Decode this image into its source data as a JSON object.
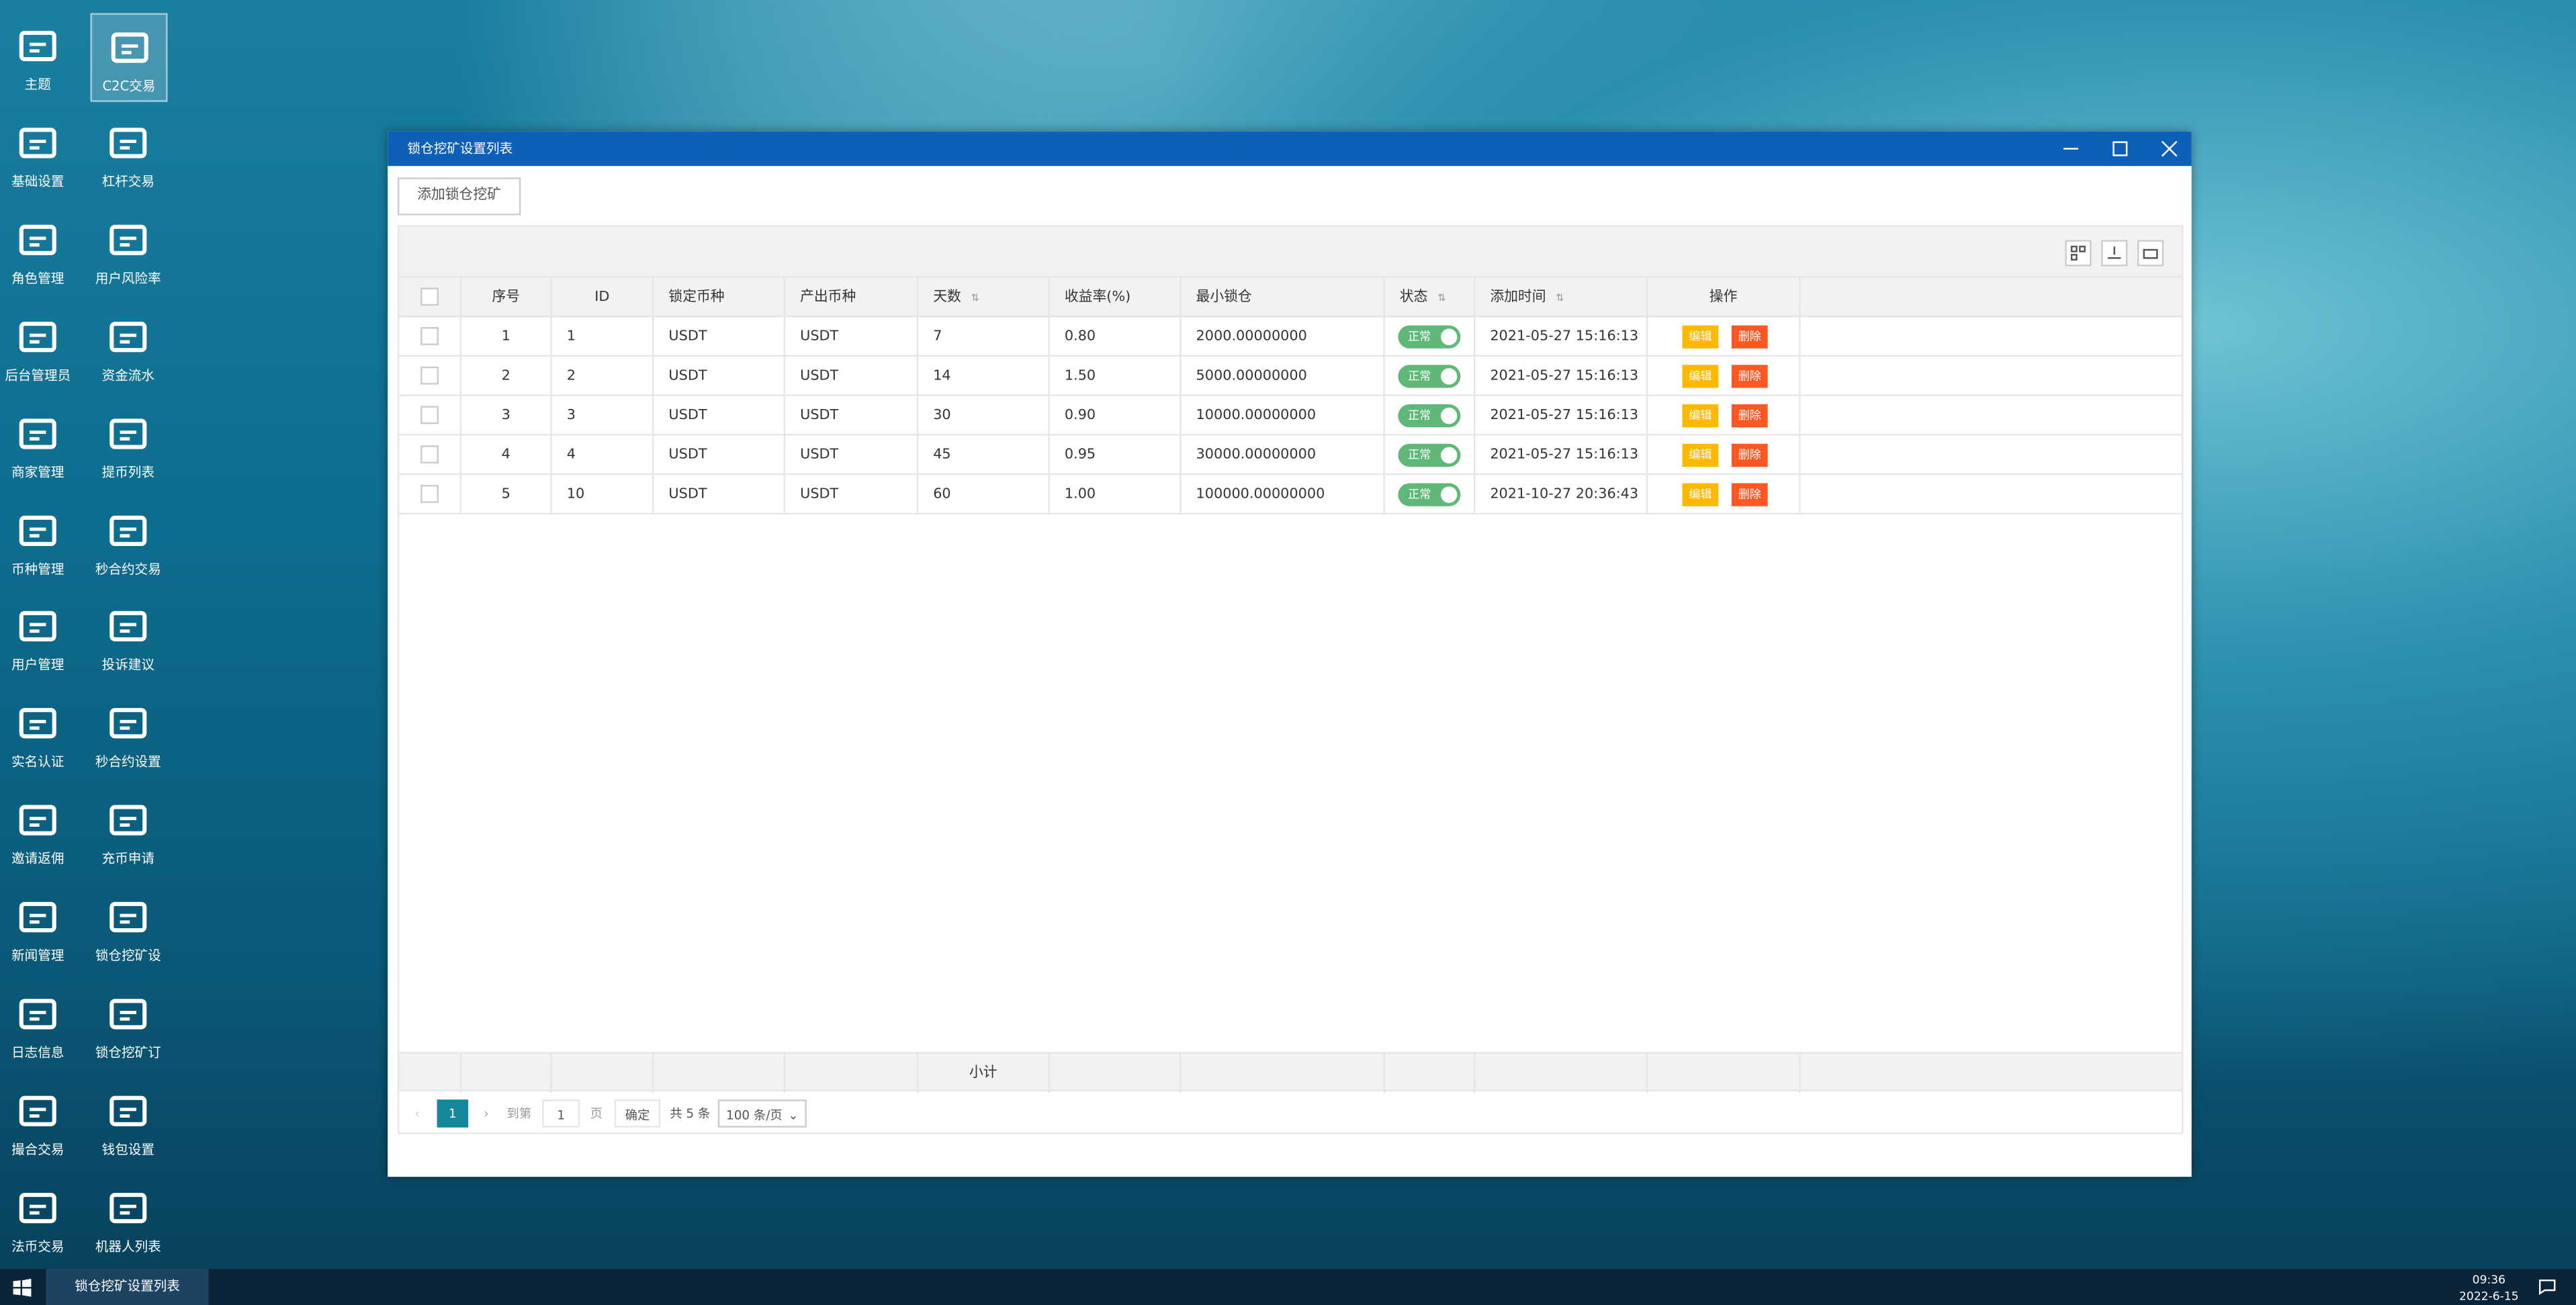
{
  "desktop_icons": [
    "主题",
    "C2C交易",
    "基础设置",
    "杠杆交易",
    "角色管理",
    "用户风险率",
    "后台管理员",
    "资金流水",
    "商家管理",
    "提币列表",
    "币种管理",
    "秒合约交易",
    "用户管理",
    "投诉建议",
    "实名认证",
    "秒合约设置",
    "邀请返佣",
    "充币申请",
    "新闻管理",
    "锁仓挖矿设",
    "日志信息",
    "锁仓挖矿订",
    "撮合交易",
    "钱包设置",
    "法币交易",
    "机器人列表"
  ],
  "window": {
    "title": "锁仓挖矿设置列表",
    "add_button": "添加锁仓挖矿"
  },
  "table": {
    "headers": [
      "序号",
      "ID",
      "锁定币种",
      "产出币种",
      "天数",
      "收益率(%)",
      "最小锁仓",
      "状态",
      "添加时间",
      "操作"
    ],
    "rows": [
      [
        "1",
        "1",
        "USDT",
        "USDT",
        "7",
        "0.80",
        "2000.00000000",
        "正常",
        "2021-05-27 15:16:13"
      ],
      [
        "2",
        "2",
        "USDT",
        "USDT",
        "14",
        "1.50",
        "5000.00000000",
        "正常",
        "2021-05-27 15:16:13"
      ],
      [
        "3",
        "3",
        "USDT",
        "USDT",
        "30",
        "0.90",
        "10000.00000000",
        "正常",
        "2021-05-27 15:16:13"
      ],
      [
        "4",
        "4",
        "USDT",
        "USDT",
        "45",
        "0.95",
        "30000.00000000",
        "正常",
        "2021-05-27 15:16:13"
      ],
      [
        "5",
        "10",
        "USDT",
        "USDT",
        "60",
        "1.00",
        "100000.00000000",
        "正常",
        "2021-10-27 20:36:43"
      ]
    ],
    "actions": [
      "编辑",
      "删除"
    ],
    "subtotal": "小计"
  },
  "pagination": {
    "current": "1",
    "goto": "到第",
    "page_input": "1",
    "page_unit": "页",
    "confirm": "确定",
    "total": "共 5 条",
    "per_page": "100 条/页"
  },
  "taskbar": {
    "task": "锁仓挖矿设置列表",
    "time": "09:36",
    "date": "2022-6-15"
  }
}
